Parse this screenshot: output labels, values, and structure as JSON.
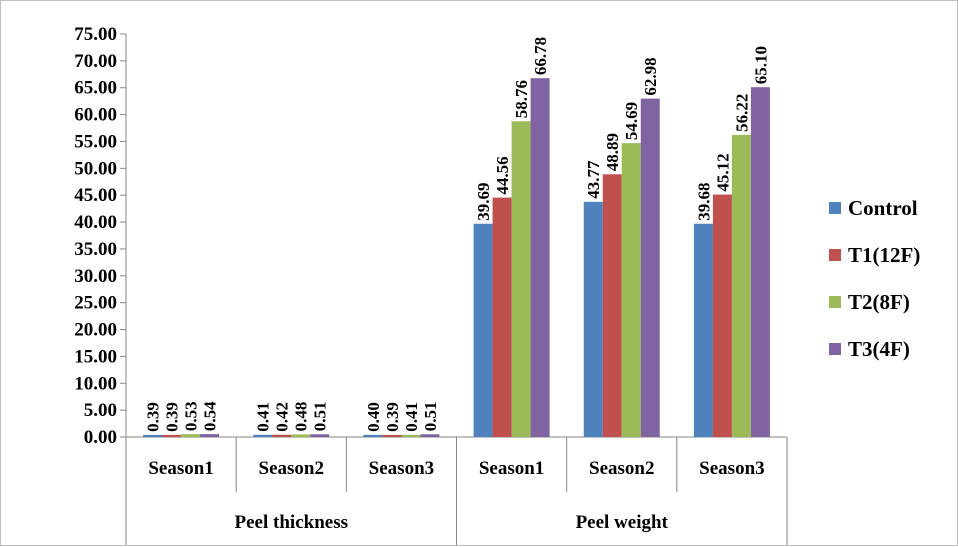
{
  "chart_data": {
    "type": "bar",
    "title": "",
    "xlabel": "",
    "ylabel": "",
    "ylim": [
      0,
      75
    ],
    "y_ticks": [
      "0.00",
      "5.00",
      "10.00",
      "15.00",
      "20.00",
      "25.00",
      "30.00",
      "35.00",
      "40.00",
      "45.00",
      "50.00",
      "55.00",
      "60.00",
      "65.00",
      "70.00",
      "75.00"
    ],
    "grid": false,
    "legend_position": "right",
    "groups": [
      {
        "label": "Peel thickness",
        "categories": [
          "Season1",
          "Season2",
          "Season3"
        ]
      },
      {
        "label": "Peel weight",
        "categories": [
          "Season1",
          "Season2",
          "Season3"
        ]
      }
    ],
    "categories": [
      "Season1",
      "Season2",
      "Season3",
      "Season1",
      "Season2",
      "Season3"
    ],
    "series": [
      {
        "name": "Control",
        "color": "#4F81BD",
        "values": [
          0.39,
          0.41,
          0.4,
          39.69,
          43.77,
          39.68
        ],
        "labels": [
          "0.39",
          "0.41",
          "0.40",
          "39.69",
          "43.77",
          "39.68"
        ]
      },
      {
        "name": "T1(12F)",
        "color": "#C0504D",
        "values": [
          0.39,
          0.42,
          0.39,
          44.56,
          48.89,
          45.12
        ],
        "labels": [
          "0.39",
          "0.42",
          "0.39",
          "44.56",
          "48.89",
          "45.12"
        ]
      },
      {
        "name": "T2(8F)",
        "color": "#9BBB59",
        "values": [
          0.53,
          0.48,
          0.41,
          58.76,
          54.69,
          56.22
        ],
        "labels": [
          "0.53",
          "0.48",
          "0.41",
          "58.76",
          "54.69",
          "56.22"
        ]
      },
      {
        "name": "T3(4F)",
        "color": "#8064A2",
        "values": [
          0.54,
          0.51,
          0.51,
          66.78,
          62.98,
          65.1
        ],
        "labels": [
          "0.54",
          "0.51",
          "0.51",
          "66.78",
          "62.98",
          "65.10"
        ]
      }
    ]
  }
}
